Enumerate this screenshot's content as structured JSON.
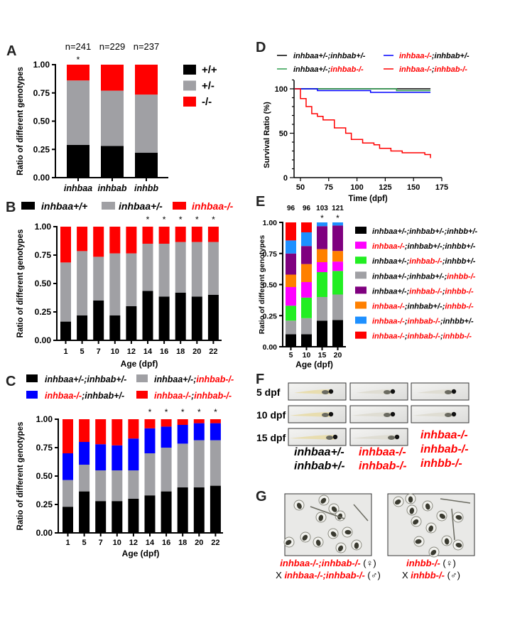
{
  "panel_labels": {
    "A": "A",
    "B": "B",
    "C": "C",
    "D": "D",
    "E": "E",
    "F": "F",
    "G": "G"
  },
  "chart_data": [
    {
      "panel": "A",
      "type": "bar",
      "stacked": true,
      "categories": [
        "inhbaa",
        "inhbab",
        "inhbb"
      ],
      "n_labels": [
        "n=241",
        "n=229",
        "n=237"
      ],
      "significance": [
        "*",
        "",
        ""
      ],
      "ylabel": "Ratio of different genotypes",
      "yticks": [
        "0.00",
        "0.25",
        "0.50",
        "0.75",
        "1.00"
      ],
      "ylim": [
        0,
        1
      ],
      "legend_placement": "right",
      "series": [
        {
          "label_parts": [
            {
              "t": "+/+",
              "c": "#000000"
            }
          ],
          "color": "#000000",
          "values": [
            0.29,
            0.28,
            0.22
          ]
        },
        {
          "label_parts": [
            {
              "t": "+/-",
              "c": "#000000"
            }
          ],
          "color": "#a0a0a4",
          "values": [
            0.57,
            0.49,
            0.515
          ]
        },
        {
          "label_parts": [
            {
              "t": "-/-",
              "c": "#000000"
            }
          ],
          "color": "#ff0000",
          "values": [
            0.14,
            0.23,
            0.265
          ]
        }
      ]
    },
    {
      "panel": "B",
      "type": "bar",
      "stacked": true,
      "categories": [
        "1",
        "5",
        "7",
        "10",
        "12",
        "14",
        "16",
        "18",
        "20",
        "22"
      ],
      "significance": [
        "",
        "",
        "",
        "",
        "",
        "*",
        "*",
        "*",
        "*",
        "*"
      ],
      "xlabel": "Age (dpf)",
      "ylabel": "Ratio of different genotypes",
      "yticks": [
        "0.00",
        "0.25",
        "0.50",
        "0.75",
        "1.00"
      ],
      "ylim": [
        0,
        1
      ],
      "legend_placement": "top",
      "series": [
        {
          "label_parts": [
            {
              "t": "inhbaa+/+",
              "c": "#000000"
            }
          ],
          "color": "#000000",
          "values": [
            0.165,
            0.22,
            0.35,
            0.22,
            0.3,
            0.435,
            0.385,
            0.42,
            0.385,
            0.4
          ]
        },
        {
          "label_parts": [
            {
              "t": "inhbaa+/-",
              "c": "#000000"
            }
          ],
          "color": "#a0a0a4",
          "values": [
            0.52,
            0.565,
            0.385,
            0.545,
            0.465,
            0.415,
            0.465,
            0.445,
            0.48,
            0.465
          ]
        },
        {
          "label_parts": [
            {
              "t": "inhbaa-/-",
              "c": "#ff0000"
            }
          ],
          "color": "#ff0000",
          "values": [
            0.315,
            0.215,
            0.265,
            0.235,
            0.235,
            0.15,
            0.15,
            0.135,
            0.135,
            0.135
          ]
        }
      ]
    },
    {
      "panel": "C",
      "type": "bar",
      "stacked": true,
      "categories": [
        "1",
        "5",
        "7",
        "10",
        "12",
        "14",
        "16",
        "18",
        "20",
        "22"
      ],
      "significance": [
        "",
        "",
        "",
        "",
        "",
        "*",
        "*",
        "*",
        "*",
        "*"
      ],
      "xlabel": "Age (dpf)",
      "ylabel": "Ratio of different genotypes",
      "yticks": [
        "0.00",
        "0.25",
        "0.50",
        "0.75",
        "1.00"
      ],
      "ylim": [
        0,
        1
      ],
      "legend_placement": "top",
      "series": [
        {
          "label_parts": [
            {
              "t": "inhbaa+/-;inhbab+/-",
              "c": "#000000"
            }
          ],
          "color": "#000000",
          "values": [
            0.23,
            0.365,
            0.28,
            0.28,
            0.3,
            0.33,
            0.365,
            0.4,
            0.4,
            0.415
          ]
        },
        {
          "label_parts": [
            {
              "t": "inhbaa+/-;",
              "c": "#000000"
            },
            {
              "t": "inhbab-/-",
              "c": "#ff0000"
            }
          ],
          "color": "#a0a0a4",
          "values": [
            0.235,
            0.235,
            0.27,
            0.27,
            0.25,
            0.37,
            0.385,
            0.385,
            0.415,
            0.4
          ]
        },
        {
          "label_parts": [
            {
              "t": "inhbaa-/-",
              "c": "#ff0000"
            },
            {
              "t": ";inhbab+/-",
              "c": "#000000"
            }
          ],
          "color": "#0000ff",
          "values": [
            0.235,
            0.2,
            0.23,
            0.22,
            0.28,
            0.22,
            0.185,
            0.165,
            0.15,
            0.15
          ]
        },
        {
          "label_parts": [
            {
              "t": "inhbaa-/-",
              "c": "#ff0000"
            },
            {
              "t": ";",
              "c": "#000000"
            },
            {
              "t": "inhbab-/-",
              "c": "#ff0000"
            }
          ],
          "color": "#ff0000",
          "values": [
            0.3,
            0.2,
            0.22,
            0.23,
            0.17,
            0.08,
            0.065,
            0.05,
            0.035,
            0.035
          ]
        }
      ]
    },
    {
      "panel": "D",
      "type": "line",
      "step": true,
      "xlabel": "Time (dpf)",
      "ylabel": "Survival Ratio (%)",
      "xticks": [
        "50",
        "75",
        "100",
        "125",
        "150",
        "175"
      ],
      "yticks": [
        "0",
        "50",
        "100"
      ],
      "xlim": [
        45,
        175
      ],
      "ylim": [
        0,
        100
      ],
      "legend_placement": "top",
      "series": [
        {
          "label_parts": [
            {
              "t": "inhbaa+/-;inhbab+/-",
              "c": "#000000"
            }
          ],
          "color": "#000000",
          "points": [
            [
              45,
              100
            ],
            [
              165,
              100
            ]
          ]
        },
        {
          "label_parts": [
            {
              "t": "inhbaa-/-",
              "c": "#ff0000"
            },
            {
              "t": ";inhbab+/-",
              "c": "#000000"
            }
          ],
          "color": "#0000ff",
          "points": [
            [
              45,
              100
            ],
            [
              65,
              98
            ],
            [
              112,
              96
            ],
            [
              165,
              96
            ]
          ]
        },
        {
          "label_parts": [
            {
              "t": "inhbaa+/-;",
              "c": "#000000"
            },
            {
              "t": "inhbab-/-",
              "c": "#ff0000"
            }
          ],
          "color": "#2e9e4e",
          "points": [
            [
              45,
              100
            ],
            [
              135,
              98
            ],
            [
              165,
              98
            ]
          ]
        },
        {
          "label_parts": [
            {
              "t": "inhbaa-/-",
              "c": "#ff0000"
            },
            {
              "t": ";",
              "c": "#000000"
            },
            {
              "t": "inhbab-/-",
              "c": "#ff0000"
            }
          ],
          "color": "#ff0000",
          "points": [
            [
              45,
              100
            ],
            [
              50,
              89
            ],
            [
              55,
              80
            ],
            [
              60,
              72
            ],
            [
              65,
              69
            ],
            [
              70,
              65
            ],
            [
              80,
              56
            ],
            [
              90,
              50
            ],
            [
              95,
              43
            ],
            [
              105,
              39
            ],
            [
              115,
              37
            ],
            [
              120,
              33
            ],
            [
              130,
              30
            ],
            [
              140,
              28
            ],
            [
              160,
              26
            ],
            [
              165,
              22
            ]
          ]
        }
      ]
    },
    {
      "panel": "E",
      "type": "bar",
      "stacked": true,
      "categories": [
        "5",
        "10",
        "15",
        "20"
      ],
      "n_labels": [
        "96",
        "96",
        "103",
        "121"
      ],
      "significance": [
        "",
        "",
        "*",
        "*"
      ],
      "xlabel": "Age (dpf)",
      "ylabel": "Ratio of different genotypes",
      "yticks": [
        "0.00",
        "0.25",
        "0.50",
        "0.75",
        "1.00"
      ],
      "ylim": [
        0,
        1
      ],
      "legend_placement": "right",
      "series": [
        {
          "label_parts": [
            {
              "t": "inhbaa+/-;inhbab+/-;inhbb+/-",
              "c": "#000000"
            }
          ],
          "color": "#000000",
          "values": [
            0.1,
            0.1,
            0.21,
            0.215
          ]
        },
        {
          "label_parts": [
            {
              "t": "inhbaa-/-",
              "c": "#ff0000"
            },
            {
              "t": ";inhbab+/-;inhbb+/-",
              "c": "#000000"
            }
          ],
          "color": "#ff00ff",
          "values": [
            0.15,
            0.125,
            0.08,
            0.075
          ]
        },
        {
          "label_parts": [
            {
              "t": "inhbaa+/-;",
              "c": "#000000"
            },
            {
              "t": "inhbab-/-",
              "c": "#ff0000"
            },
            {
              "t": ";inhbb+/-",
              "c": "#000000"
            }
          ],
          "color": "#22ee22",
          "values": [
            0.12,
            0.165,
            0.2,
            0.19
          ]
        },
        {
          "label_parts": [
            {
              "t": "inhbaa+/-;inhbab+/-;",
              "c": "#000000"
            },
            {
              "t": "inhbb-/-",
              "c": "#ff0000"
            }
          ],
          "color": "#a0a0a4",
          "values": [
            0.11,
            0.13,
            0.19,
            0.205
          ]
        },
        {
          "label_parts": [
            {
              "t": "inhbaa+/-;",
              "c": "#000000"
            },
            {
              "t": "inhbab-/-",
              "c": "#ff0000"
            },
            {
              "t": ";",
              "c": "#000000"
            },
            {
              "t": "inhbb-/-",
              "c": "#ff0000"
            }
          ],
          "color": "#7f007f",
          "values": [
            0.17,
            0.145,
            0.185,
            0.205
          ]
        },
        {
          "label_parts": [
            {
              "t": "inhbaa-/-",
              "c": "#ff0000"
            },
            {
              "t": ";inhbab+/-;",
              "c": "#000000"
            },
            {
              "t": "inhbb-/-",
              "c": "#ff0000"
            }
          ],
          "color": "#ff8000",
          "values": [
            0.1,
            0.145,
            0.105,
            0.085
          ]
        },
        {
          "label_parts": [
            {
              "t": "inhbaa-/-",
              "c": "#ff0000"
            },
            {
              "t": ";",
              "c": "#000000"
            },
            {
              "t": "inhbab-/-",
              "c": "#ff0000"
            },
            {
              "t": ";inhbb+/-",
              "c": "#000000"
            }
          ],
          "color": "#1e90ff",
          "values": [
            0.105,
            0.11,
            0.03,
            0.025
          ]
        },
        {
          "label_parts": [
            {
              "t": "inhbaa-/-",
              "c": "#ff0000"
            },
            {
              "t": ";",
              "c": "#000000"
            },
            {
              "t": "inhbab-/-",
              "c": "#ff0000"
            },
            {
              "t": ";",
              "c": "#000000"
            },
            {
              "t": "inhbb-/-",
              "c": "#ff0000"
            }
          ],
          "color": "#ff0000",
          "values": [
            0.145,
            0.08,
            0,
            0
          ]
        }
      ]
    }
  ],
  "panel_F": {
    "row_labels": [
      "5 dpf",
      "10 dpf",
      "15 dpf"
    ],
    "columns": [
      {
        "lines": [
          {
            "t": "inhbaa+/-",
            "c": "#000000"
          },
          {
            "t": "inhbab+/-",
            "c": "#000000"
          }
        ],
        "images": 3
      },
      {
        "lines": [
          {
            "t": "inhbaa-/-",
            "c": "#ff0000"
          },
          {
            "t": "inhbab-/-",
            "c": "#ff0000"
          }
        ],
        "images": 3
      },
      {
        "lines": [
          {
            "t": "inhbaa-/-",
            "c": "#ff0000"
          },
          {
            "t": "inhbab-/-",
            "c": "#ff0000"
          },
          {
            "t": "inhbb-/-",
            "c": "#ff0000"
          }
        ],
        "images": 2
      }
    ]
  },
  "panel_G": {
    "captions": [
      [
        [
          {
            "t": "inhbaa-/-;inhbab-/-",
            "c": "#ff0000"
          },
          {
            "t": " (♀)",
            "c": "#000000"
          }
        ],
        [
          {
            "t": "X ",
            "c": "#000000"
          },
          {
            "t": "inhbaa-/-;inhbab-/-",
            "c": "#ff0000"
          },
          {
            "t": " (♂)",
            "c": "#000000"
          }
        ]
      ],
      [
        [
          {
            "t": "inhbb-/-",
            "c": "#ff0000"
          },
          {
            "t": " (♀)",
            "c": "#000000"
          }
        ],
        [
          {
            "t": "X ",
            "c": "#000000"
          },
          {
            "t": "inhbb-/-",
            "c": "#ff0000"
          },
          {
            "t": " (♂)",
            "c": "#000000"
          }
        ]
      ]
    ]
  }
}
